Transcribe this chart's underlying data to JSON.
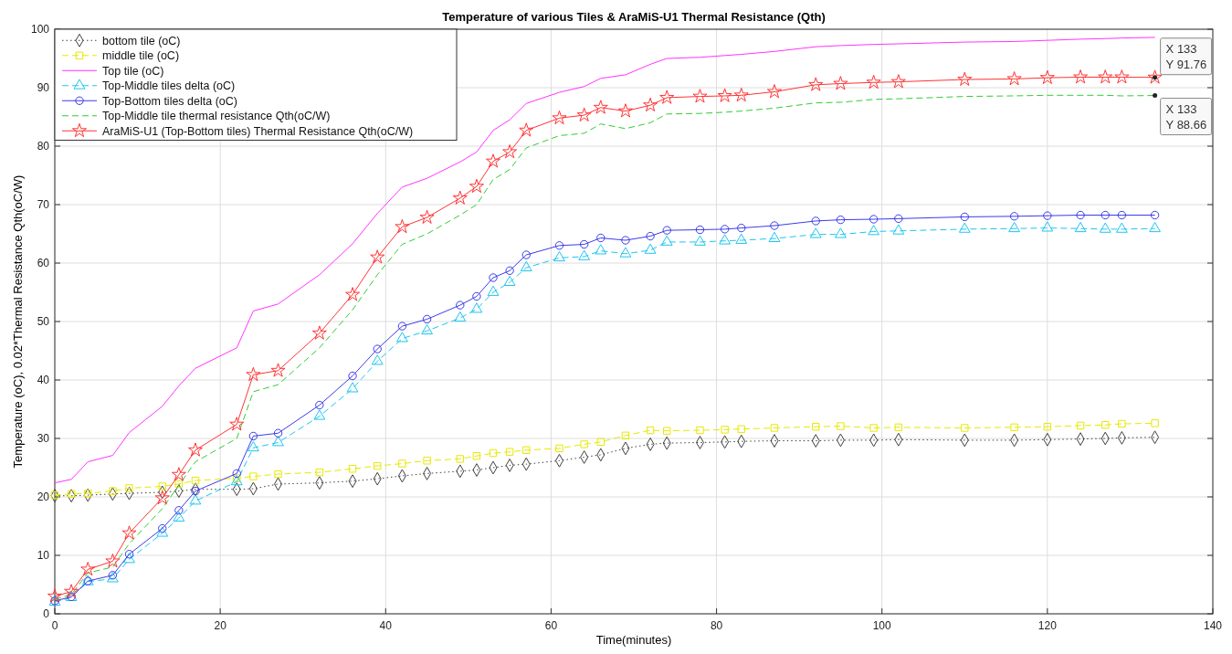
{
  "chart_data": {
    "type": "line",
    "title": "Temperature of various Tiles & AraMiS-U1 Thermal Resistance (Qth)",
    "xlabel": "Time(minutes)",
    "ylabel": "Temperature (oC), 0.02*Thermal Resistance Qth(oC/W)",
    "x": [
      0,
      2,
      4,
      7,
      9,
      13,
      15,
      17,
      22,
      24,
      27,
      32,
      36,
      39,
      42,
      45,
      49,
      51,
      53,
      55,
      57,
      61,
      64,
      66,
      69,
      72,
      74,
      78,
      81,
      83,
      87,
      92,
      95,
      99,
      102,
      110,
      116,
      120,
      124,
      127,
      129,
      133
    ],
    "series": [
      {
        "name": "bottom tile (oC)",
        "color": "#404040",
        "marker": "diamond",
        "line_style": "dotted",
        "values": [
          20.2,
          20.2,
          20.3,
          20.5,
          20.6,
          20.8,
          21,
          21.3,
          21.3,
          21.4,
          22.2,
          22.4,
          22.7,
          23.1,
          23.6,
          24,
          24.4,
          24.6,
          25,
          25.4,
          25.6,
          26.2,
          26.8,
          27.2,
          28.3,
          29,
          29.2,
          29.3,
          29.4,
          29.5,
          29.6,
          29.6,
          29.7,
          29.7,
          29.8,
          29.7,
          29.7,
          29.8,
          29.9,
          30,
          30.1,
          30.2
        ]
      },
      {
        "name": "middle tile (oC)",
        "color": "#e8e800",
        "marker": "square",
        "line_style": "dashed",
        "values": [
          20.3,
          20.5,
          20.6,
          21,
          21.5,
          21.8,
          22.2,
          22.8,
          23.2,
          23.5,
          23.9,
          24.2,
          24.8,
          25.3,
          25.7,
          26.2,
          26.5,
          27,
          27.5,
          27.7,
          28,
          28.3,
          29,
          29.4,
          30.5,
          31.4,
          31.3,
          31.4,
          31.5,
          31.6,
          31.8,
          32,
          32.1,
          31.8,
          31.9,
          31.8,
          31.9,
          32,
          32.2,
          32.3,
          32.5,
          32.6
        ]
      },
      {
        "name": "Top tile (oC)",
        "color": "#ff33ff",
        "marker": "none",
        "line_style": "solid",
        "values": [
          22.4,
          23,
          26,
          27.1,
          31,
          35.5,
          39,
          42,
          45.5,
          51.8,
          53,
          58,
          63.3,
          68.5,
          73,
          74.5,
          77.3,
          79,
          82.7,
          84.5,
          87.3,
          89.2,
          90.2,
          91.6,
          92.2,
          94,
          95,
          95.2,
          95.5,
          95.7,
          96.2,
          97,
          97.2,
          97.4,
          97.5,
          97.8,
          97.9,
          98.1,
          98.3,
          98.4,
          98.5,
          98.6
        ]
      },
      {
        "name": "Top-Middle tiles delta (oC)",
        "color": "#1cc6f0",
        "marker": "triangle",
        "line_style": "dashed",
        "values": [
          2,
          2.8,
          5.5,
          6,
          9.3,
          13.8,
          16.4,
          19.3,
          22.6,
          28.4,
          29.3,
          33.8,
          38.5,
          43.2,
          47.1,
          48.4,
          50.6,
          52.1,
          55,
          56.7,
          59.2,
          60.9,
          61.1,
          62.1,
          61.6,
          62.2,
          63.6,
          63.6,
          63.8,
          63.9,
          64.2,
          64.9,
          64.9,
          65.4,
          65.5,
          65.8,
          65.9,
          66,
          65.9,
          65.8,
          65.8,
          65.9
        ]
      },
      {
        "name": "Top-Bottom tiles delta (oC)",
        "color": "#3b3bea",
        "marker": "circle",
        "line_style": "solid",
        "values": [
          2.2,
          2.9,
          5.6,
          6.6,
          10.2,
          14.6,
          17.7,
          21,
          24,
          30.4,
          30.9,
          35.7,
          40.7,
          45.3,
          49.2,
          50.4,
          52.8,
          54.3,
          57.5,
          58.7,
          61.4,
          63,
          63.2,
          64.3,
          63.9,
          64.6,
          65.6,
          65.7,
          65.8,
          66,
          66.4,
          67.2,
          67.4,
          67.5,
          67.6,
          67.9,
          68,
          68.1,
          68.2,
          68.2,
          68.2,
          68.2
        ]
      },
      {
        "name": "Top-Middle tile thermal resistance Qth(oC/W)",
        "color": "#33cc33",
        "marker": "none",
        "line_style": "dashed",
        "values": [
          2.5,
          3.3,
          7,
          8,
          12,
          18,
          22,
          26,
          30,
          38,
          39.2,
          45.5,
          52,
          58,
          63.2,
          65,
          68.2,
          70,
          74.3,
          76,
          79.7,
          81.8,
          82.2,
          83.8,
          83,
          84,
          85.5,
          85.6,
          85.8,
          86,
          86.5,
          87.4,
          87.5,
          88,
          88.1,
          88.5,
          88.6,
          88.7,
          88.7,
          88.7,
          88.6,
          88.66
        ]
      },
      {
        "name": "AraMiS-U1 (Top-Bottom tiles) Thermal Resistance Qth(oC/W)",
        "color": "#ff3333",
        "marker": "star",
        "line_style": "solid",
        "values": [
          3,
          3.8,
          7.6,
          9,
          13.8,
          19.8,
          23.8,
          28,
          32.4,
          40.9,
          41.6,
          48,
          54.6,
          61,
          66.2,
          67.8,
          71.1,
          73.1,
          77.4,
          79,
          82.7,
          84.8,
          85.3,
          86.6,
          86,
          87,
          88.3,
          88.5,
          88.6,
          88.7,
          89.3,
          90.5,
          90.7,
          90.9,
          91,
          91.4,
          91.5,
          91.7,
          91.8,
          91.8,
          91.8,
          91.76
        ]
      }
    ],
    "xlim": [
      0,
      140
    ],
    "xticks": [
      0,
      20,
      40,
      60,
      80,
      100,
      120,
      140
    ],
    "ylim": [
      0,
      100
    ],
    "yticks": [
      0,
      10,
      20,
      30,
      40,
      50,
      60,
      70,
      80,
      90,
      100
    ],
    "grid": true,
    "legend": "top left",
    "annotations": [
      {
        "text": "X 133\nY 91.76",
        "x": 133,
        "y": 91.76
      },
      {
        "text": "X 133\nY 88.66",
        "x": 133,
        "y": 88.66
      }
    ]
  }
}
